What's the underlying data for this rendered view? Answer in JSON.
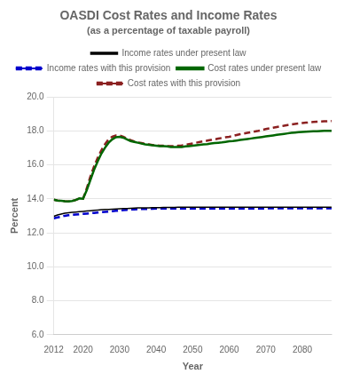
{
  "chart_data": {
    "type": "line",
    "title": "OASDI Cost Rates and Income Rates",
    "subtitle": "(as a percentage of taxable payroll)",
    "xlabel": "Year",
    "ylabel": "Percent",
    "xlim": [
      2012,
      2088
    ],
    "xticks": [
      2012,
      2020,
      2030,
      2040,
      2050,
      2060,
      2070,
      2080
    ],
    "ylim": [
      6.0,
      20.0
    ],
    "yticks": [
      {
        "value": 6,
        "label": "6.0"
      },
      {
        "value": 8,
        "label": "8.0"
      },
      {
        "value": 10,
        "label": "10.0"
      },
      {
        "value": 12,
        "label": "12.0"
      },
      {
        "value": 14,
        "label": "14.0"
      },
      {
        "value": 16,
        "label": "16.0"
      },
      {
        "value": 18,
        "label": "18.0"
      },
      {
        "value": 20,
        "label": "20.0"
      }
    ],
    "grid": "y",
    "legend": "top",
    "x": [
      2012,
      2013,
      2014,
      2015,
      2016,
      2017,
      2018,
      2019,
      2020,
      2021,
      2022,
      2023,
      2024,
      2025,
      2026,
      2027,
      2028,
      2029,
      2030,
      2031,
      2032,
      2033,
      2034,
      2035,
      2036,
      2037,
      2038,
      2039,
      2040,
      2041,
      2042,
      2043,
      2044,
      2045,
      2046,
      2047,
      2048,
      2049,
      2050,
      2051,
      2052,
      2053,
      2054,
      2055,
      2056,
      2057,
      2058,
      2059,
      2060,
      2061,
      2062,
      2063,
      2064,
      2065,
      2066,
      2067,
      2068,
      2069,
      2070,
      2071,
      2072,
      2073,
      2074,
      2075,
      2076,
      2077,
      2078,
      2079,
      2080,
      2081,
      2082,
      2083,
      2084,
      2085,
      2086,
      2087,
      2088
    ],
    "series": [
      {
        "name": "Income rates under present law",
        "color": "#000000",
        "line_style": "solid",
        "values": [
          12.97,
          13.05,
          13.1,
          13.15,
          13.18,
          13.2,
          13.22,
          13.24,
          13.26,
          13.28,
          13.3,
          13.32,
          13.34,
          13.36,
          13.37,
          13.38,
          13.39,
          13.4,
          13.41,
          13.42,
          13.43,
          13.44,
          13.45,
          13.46,
          13.47,
          13.47,
          13.47,
          13.48,
          13.48,
          13.48,
          13.49,
          13.49,
          13.49,
          13.49,
          13.5,
          13.5,
          13.5,
          13.5,
          13.5,
          13.5,
          13.5,
          13.5,
          13.5,
          13.5,
          13.5,
          13.5,
          13.5,
          13.5,
          13.5,
          13.5,
          13.5,
          13.5,
          13.5,
          13.5,
          13.5,
          13.5,
          13.5,
          13.5,
          13.5,
          13.5,
          13.5,
          13.5,
          13.5,
          13.5,
          13.5,
          13.5,
          13.5,
          13.5,
          13.5,
          13.5,
          13.5,
          13.5,
          13.5,
          13.5,
          13.5,
          13.5,
          13.5
        ]
      },
      {
        "name": "Income rates with this provision",
        "color": "#0000cc",
        "line_style": "dashed",
        "values": [
          12.85,
          12.9,
          12.95,
          13.0,
          13.03,
          13.05,
          13.07,
          13.09,
          13.11,
          13.13,
          13.15,
          13.17,
          13.19,
          13.21,
          13.23,
          13.25,
          13.27,
          13.29,
          13.31,
          13.33,
          13.35,
          13.37,
          13.38,
          13.39,
          13.4,
          13.4,
          13.41,
          13.41,
          13.42,
          13.42,
          13.42,
          13.43,
          13.43,
          13.43,
          13.43,
          13.43,
          13.43,
          13.43,
          13.43,
          13.43,
          13.43,
          13.43,
          13.43,
          13.43,
          13.43,
          13.43,
          13.43,
          13.43,
          13.43,
          13.43,
          13.43,
          13.43,
          13.43,
          13.43,
          13.43,
          13.43,
          13.43,
          13.43,
          13.43,
          13.44,
          13.44,
          13.44,
          13.44,
          13.44,
          13.44,
          13.44,
          13.44,
          13.44,
          13.44,
          13.44,
          13.44,
          13.44,
          13.44,
          13.44,
          13.44,
          13.44,
          13.44
        ]
      },
      {
        "name": "Cost rates under present law",
        "color": "#006600",
        "line_style": "solid",
        "values": [
          13.95,
          13.9,
          13.88,
          13.86,
          13.85,
          13.87,
          13.93,
          14.02,
          14.0,
          14.5,
          15.1,
          15.7,
          16.2,
          16.65,
          17.0,
          17.3,
          17.5,
          17.62,
          17.65,
          17.6,
          17.5,
          17.4,
          17.35,
          17.3,
          17.25,
          17.2,
          17.18,
          17.15,
          17.13,
          17.1,
          17.1,
          17.08,
          17.05,
          17.05,
          17.05,
          17.05,
          17.08,
          17.1,
          17.12,
          17.15,
          17.18,
          17.2,
          17.22,
          17.25,
          17.28,
          17.3,
          17.32,
          17.35,
          17.38,
          17.4,
          17.43,
          17.46,
          17.49,
          17.52,
          17.55,
          17.58,
          17.61,
          17.64,
          17.67,
          17.7,
          17.73,
          17.76,
          17.79,
          17.82,
          17.85,
          17.88,
          17.9,
          17.92,
          17.94,
          17.95,
          17.96,
          17.97,
          17.98,
          17.99,
          18.0,
          18.0,
          18.0
        ]
      },
      {
        "name": "Cost rates with this provision",
        "color": "#8b2020",
        "line_style": "dashed",
        "values": [
          13.95,
          13.9,
          13.88,
          13.86,
          13.85,
          13.87,
          13.93,
          14.02,
          14.0,
          14.6,
          15.3,
          15.9,
          16.4,
          16.85,
          17.2,
          17.5,
          17.65,
          17.72,
          17.72,
          17.65,
          17.55,
          17.45,
          17.38,
          17.32,
          17.28,
          17.23,
          17.2,
          17.17,
          17.15,
          17.13,
          17.12,
          17.1,
          17.1,
          17.1,
          17.12,
          17.14,
          17.18,
          17.22,
          17.25,
          17.3,
          17.35,
          17.38,
          17.42,
          17.46,
          17.5,
          17.54,
          17.58,
          17.62,
          17.65,
          17.7,
          17.75,
          17.8,
          17.84,
          17.88,
          17.92,
          17.96,
          18.0,
          18.05,
          18.1,
          18.14,
          18.18,
          18.22,
          18.26,
          18.3,
          18.34,
          18.38,
          18.41,
          18.44,
          18.46,
          18.48,
          18.5,
          18.52,
          18.54,
          18.55,
          18.56,
          18.57,
          18.58
        ]
      }
    ]
  }
}
